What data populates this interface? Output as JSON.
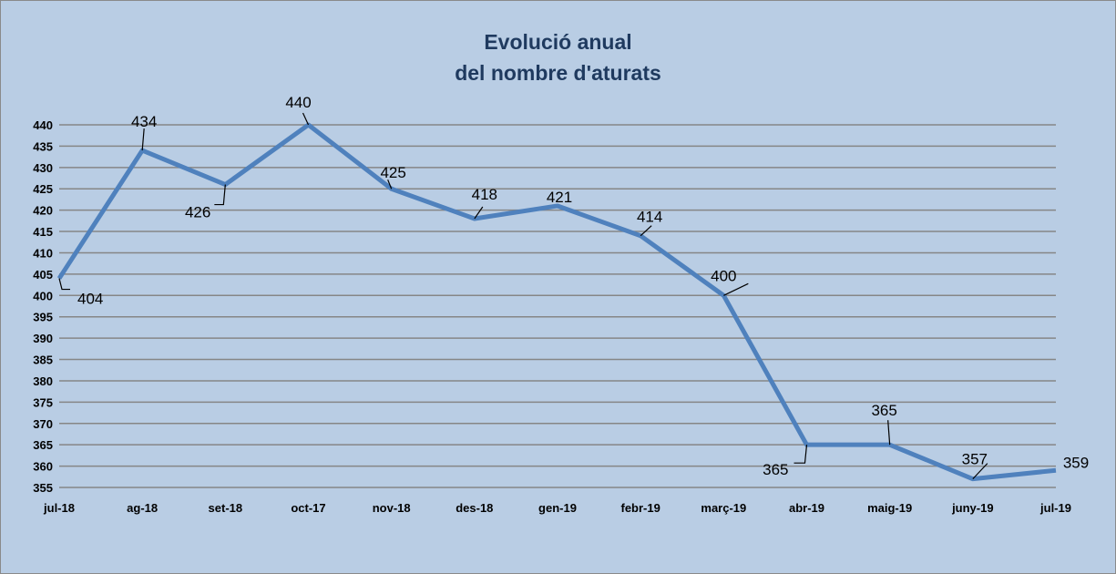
{
  "chart_data": {
    "type": "line",
    "title_line1": "Evolució anual",
    "title_line2": "del nombre d'aturats",
    "categories": [
      "jul-18",
      "ag-18",
      "set-18",
      "oct-17",
      "nov-18",
      "des-18",
      "gen-19",
      "febr-19",
      "març-19",
      "abr-19",
      "maig-19",
      "juny-19",
      "jul-19"
    ],
    "series": [
      {
        "values": [
          404,
          434,
          426,
          440,
          425,
          418,
          421,
          414,
          400,
          365,
          365,
          357,
          359
        ]
      }
    ],
    "ylim": [
      355,
      440
    ],
    "ytick_step": 5,
    "grid": true,
    "line_color": "#4f81bd",
    "grid_color": "#868686"
  }
}
